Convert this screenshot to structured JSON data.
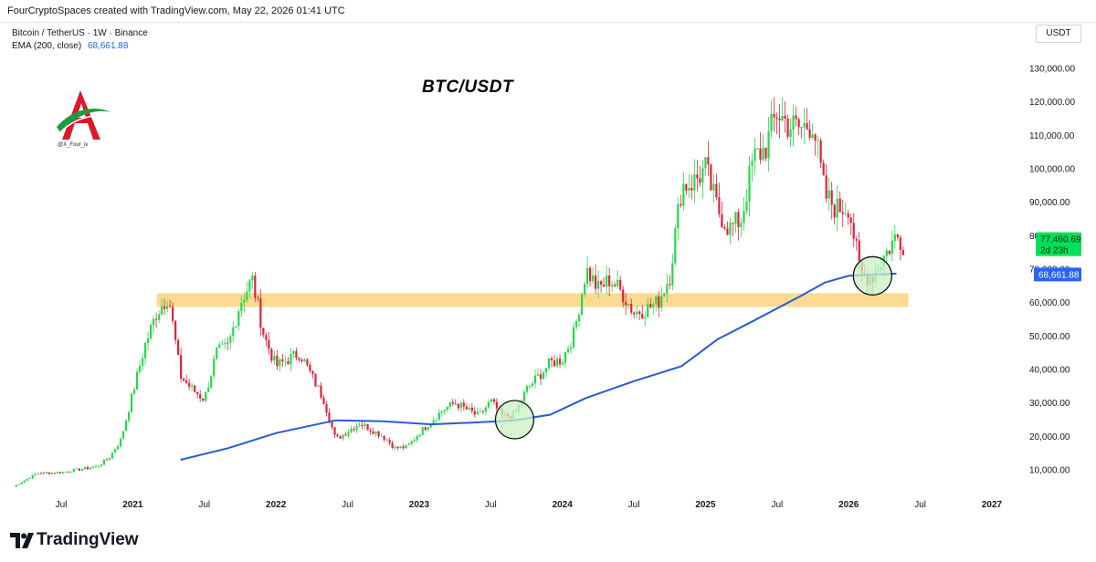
{
  "header": {
    "credit": "FourCryptoSpaces created with TradingView.com, May 22, 2026 01:41 UTC",
    "symbol": "Bitcoin / TetherUS · 1W · Binance",
    "ema_label": "EMA (200, close)",
    "ema_value": "68,661.88",
    "currency": "USDT"
  },
  "annotations": {
    "title": "BTC/USDT",
    "watermark_handle": "@X_Four_iv"
  },
  "footer": {
    "brand": "TradingView"
  },
  "colors": {
    "up": "#26d94a",
    "down": "#e0223b",
    "ema": "#2a5bd7",
    "zone": "#fbd37f",
    "circle_fill": "#c9f2c4",
    "price_badge": "#00e05a",
    "ema_badge": "#2962ff"
  },
  "chart_data": {
    "type": "candlestick",
    "title": "BTC/USDT",
    "symbol": "Bitcoin / TetherUS",
    "timeframe": "1W",
    "exchange": "Binance",
    "x_ticks": [
      "Jul",
      "2021",
      "Jul",
      "2022",
      "Jul",
      "2023",
      "Jul",
      "2024",
      "Jul",
      "2025",
      "Jul",
      "2026",
      "Jul",
      "2027"
    ],
    "x_tick_dates": [
      "2020-07",
      "2021-01",
      "2021-07",
      "2022-01",
      "2022-07",
      "2023-01",
      "2023-07",
      "2024-01",
      "2024-07",
      "2025-01",
      "2025-07",
      "2026-01",
      "2026-07",
      "2027-01"
    ],
    "y_ticks": [
      "10,000.00",
      "20,000.00",
      "30,000.00",
      "40,000.00",
      "50,000.00",
      "60,000.00",
      "70,000.00",
      "80,000.00",
      "90,000.00",
      "100,000.00",
      "110,000.00",
      "120,000.00",
      "130,000.00"
    ],
    "y_tick_values": [
      10000,
      20000,
      30000,
      40000,
      50000,
      60000,
      70000,
      80000,
      90000,
      100000,
      110000,
      120000,
      130000
    ],
    "ylim": [
      1500,
      138000
    ],
    "xlim": [
      "2020-03",
      "2027-06"
    ],
    "grid": false,
    "last_price": {
      "value": 77460.69,
      "label": "77,460.69",
      "countdown": "2d 23h"
    },
    "ema": {
      "name": "EMA (200, close)",
      "current": 68661.88,
      "current_label": "68,661.88",
      "points": [
        [
          "2021-05",
          13000
        ],
        [
          "2021-09",
          16500
        ],
        [
          "2022-01",
          21000
        ],
        [
          "2022-06",
          24800
        ],
        [
          "2022-10",
          24500
        ],
        [
          "2023-02",
          23600
        ],
        [
          "2023-06",
          24200
        ],
        [
          "2023-09",
          24800
        ],
        [
          "2023-12",
          26500
        ],
        [
          "2024-03",
          31500
        ],
        [
          "2024-07",
          36500
        ],
        [
          "2024-11",
          41000
        ],
        [
          "2025-02",
          49000
        ],
        [
          "2025-05",
          54500
        ],
        [
          "2025-09",
          62000
        ],
        [
          "2025-11",
          66000
        ],
        [
          "2026-01",
          68000
        ],
        [
          "2026-05",
          68661.88
        ]
      ]
    },
    "zones": [
      {
        "from": "2021-03",
        "to": "2026-06",
        "low": 58700,
        "high": 62800
      }
    ],
    "circles": [
      {
        "x": "2023-09",
        "y": 25000
      },
      {
        "x": "2026-03",
        "y": 68000
      }
    ],
    "anchors": [
      [
        "2020-03",
        5000
      ],
      [
        "2020-05",
        9000
      ],
      [
        "2020-07",
        9200
      ],
      [
        "2020-10",
        11000
      ],
      [
        "2020-11",
        13500
      ],
      [
        "2020-12",
        19000
      ],
      [
        "2021-01",
        33000
      ],
      [
        "2021-02",
        47000
      ],
      [
        "2021-03",
        57000
      ],
      [
        "2021-04",
        62000
      ],
      [
        "2021-05",
        38000
      ],
      [
        "2021-06",
        34000
      ],
      [
        "2021-07",
        31000
      ],
      [
        "2021-08",
        45000
      ],
      [
        "2021-09",
        47000
      ],
      [
        "2021-10",
        60000
      ],
      [
        "2021-11",
        67000
      ],
      [
        "2021-12",
        50000
      ],
      [
        "2022-01",
        41000
      ],
      [
        "2022-03",
        45000
      ],
      [
        "2022-05",
        31000
      ],
      [
        "2022-06",
        19000
      ],
      [
        "2022-08",
        24000
      ],
      [
        "2022-10",
        20000
      ],
      [
        "2022-11",
        16500
      ],
      [
        "2022-12",
        16800
      ],
      [
        "2023-01",
        21000
      ],
      [
        "2023-03",
        28000
      ],
      [
        "2023-04",
        30000
      ],
      [
        "2023-06",
        26000
      ],
      [
        "2023-07",
        30500
      ],
      [
        "2023-08",
        26000
      ],
      [
        "2023-09",
        26500
      ],
      [
        "2023-10",
        34000
      ],
      [
        "2023-12",
        42000
      ],
      [
        "2024-01",
        43000
      ],
      [
        "2024-02",
        51000
      ],
      [
        "2024-03",
        70000
      ],
      [
        "2024-04",
        64000
      ],
      [
        "2024-05",
        67000
      ],
      [
        "2024-06",
        63000
      ],
      [
        "2024-07",
        57000
      ],
      [
        "2024-08",
        58000
      ],
      [
        "2024-09",
        60000
      ],
      [
        "2024-10",
        68000
      ],
      [
        "2024-11",
        95000
      ],
      [
        "2024-12",
        96000
      ],
      [
        "2025-01",
        100000
      ],
      [
        "2025-02",
        88000
      ],
      [
        "2025-03",
        82000
      ],
      [
        "2025-04",
        85000
      ],
      [
        "2025-05",
        103000
      ],
      [
        "2025-06",
        106000
      ],
      [
        "2025-07",
        117000
      ],
      [
        "2025-08",
        113000
      ],
      [
        "2025-09",
        112000
      ],
      [
        "2025-10",
        114000
      ],
      [
        "2025-11",
        92000
      ],
      [
        "2025-12",
        88000
      ],
      [
        "2026-01",
        89000
      ],
      [
        "2026-02",
        68000
      ],
      [
        "2026-03",
        68000
      ],
      [
        "2026-04",
        74000
      ],
      [
        "2026-05",
        80000
      ],
      [
        "2026-05-20",
        77460
      ]
    ]
  }
}
